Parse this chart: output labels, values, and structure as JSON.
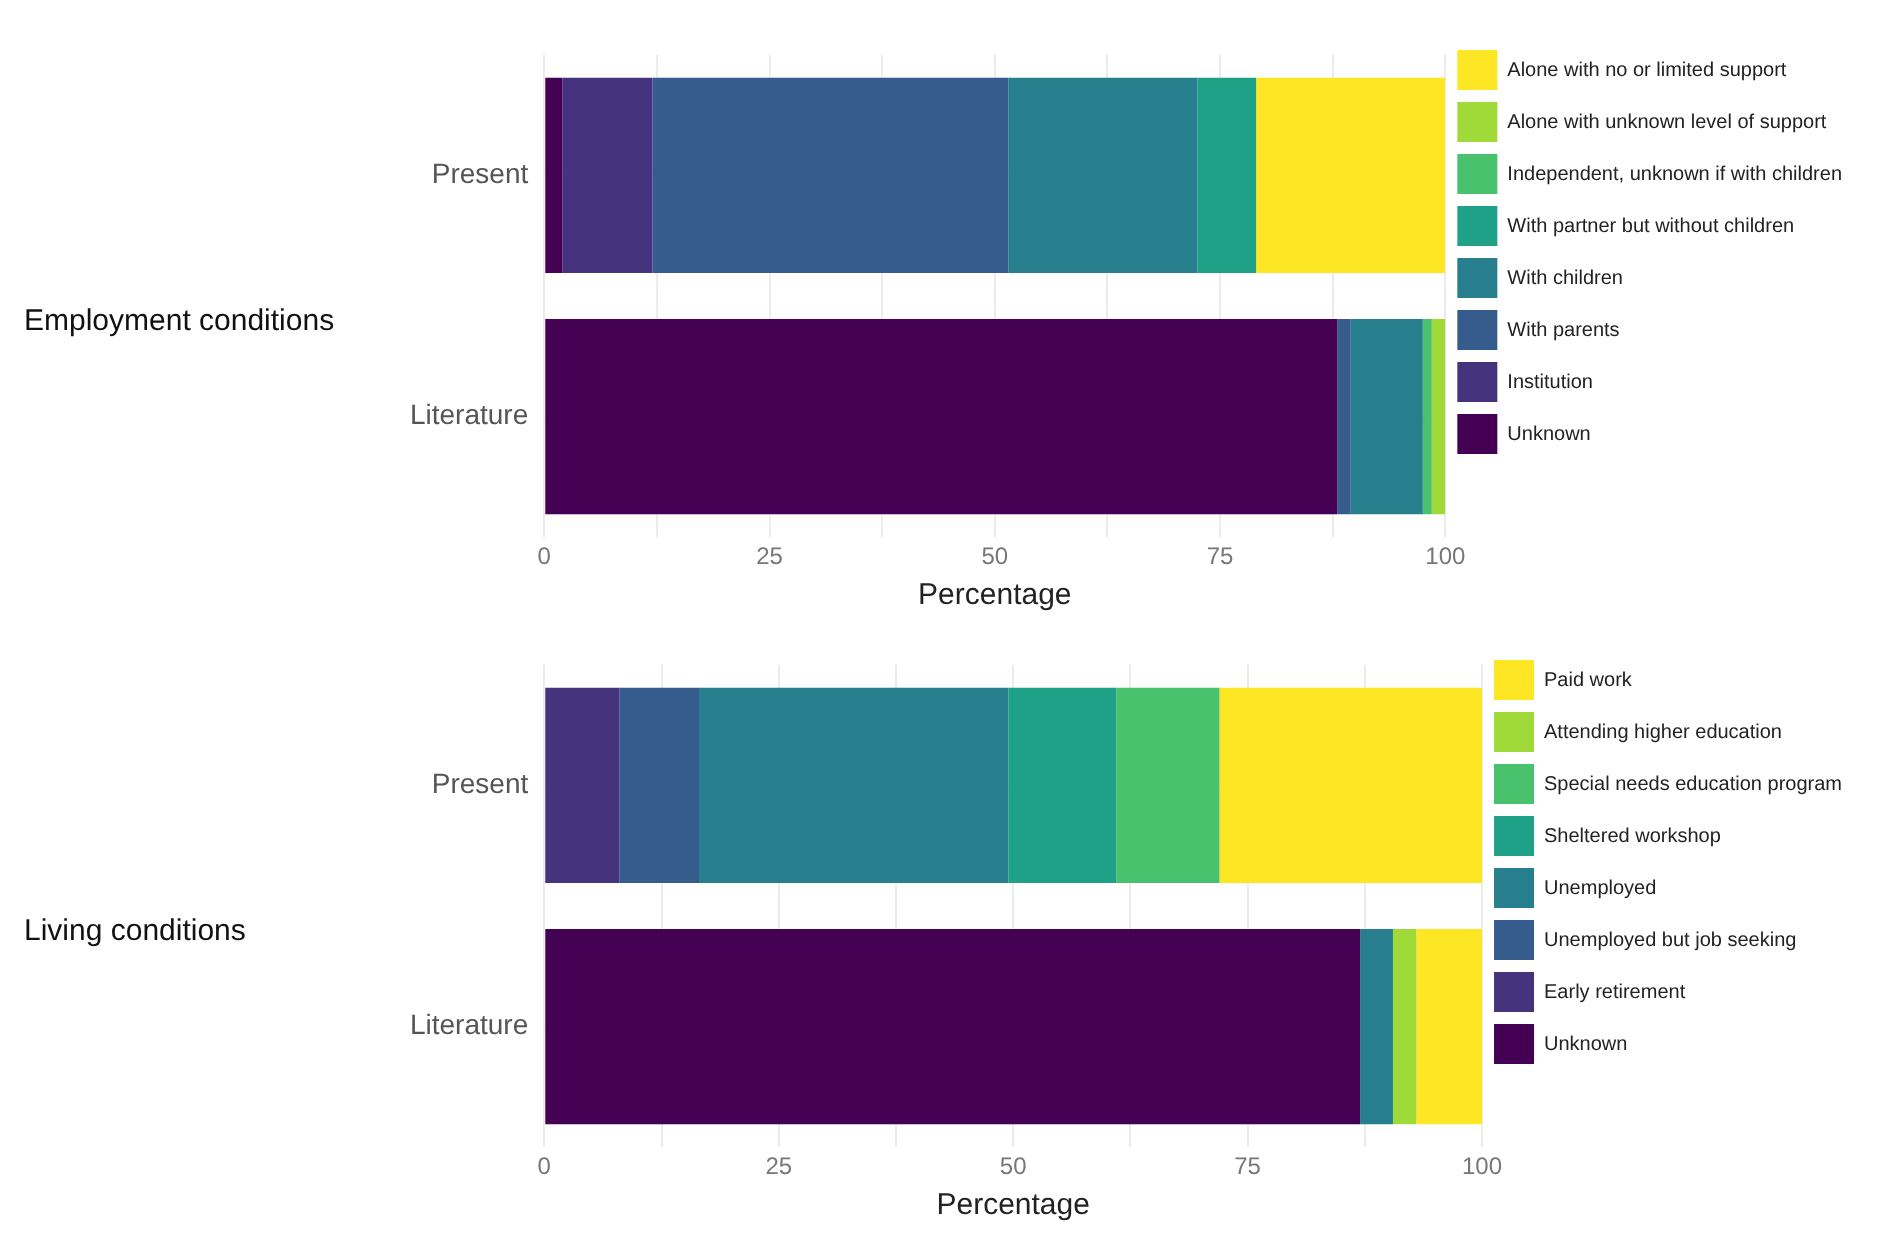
{
  "chart_data": [
    {
      "type": "bar",
      "orientation": "horizontal",
      "stacked": true,
      "title": "Employment conditions",
      "xlabel": "Percentage",
      "categories": [
        "Present",
        "Literature"
      ],
      "xlim": [
        0,
        100
      ],
      "xticks": [
        0,
        {
          "value": 12.5,
          "label": null
        },
        25,
        {
          "value": 37.5,
          "label": null
        },
        50,
        {
          "value": 62.5,
          "label": null
        },
        75,
        {
          "value": 87.5,
          "label": null
        },
        100
      ],
      "grid": true,
      "legend": "right",
      "series": [
        {
          "name": "Unknown",
          "color": "#440154",
          "values": [
            2,
            88
          ]
        },
        {
          "name": "Institution",
          "color": "#46337e",
          "values": [
            10,
            0
          ]
        },
        {
          "name": "With parents",
          "color": "#365c8d",
          "values": [
            39.5,
            1.5
          ]
        },
        {
          "name": "With children",
          "color": "#277f8e",
          "values": [
            21,
            8
          ]
        },
        {
          "name": "With partner but without children",
          "color": "#1fa187",
          "values": [
            6.5,
            0
          ]
        },
        {
          "name": "Independent, unknown if with children",
          "color": "#4ac16d",
          "values": [
            0,
            1
          ]
        },
        {
          "name": "Alone with unknown level of support",
          "color": "#a0da39",
          "values": [
            0,
            1.5
          ]
        },
        {
          "name": "Alone with no or limited support",
          "color": "#fde725",
          "values": [
            21,
            0
          ]
        }
      ]
    },
    {
      "type": "bar",
      "orientation": "horizontal",
      "stacked": true,
      "title": "Living conditions",
      "xlabel": "Percentage",
      "categories": [
        "Present",
        "Literature"
      ],
      "xlim": [
        0,
        100
      ],
      "xticks": [
        0,
        {
          "value": 12.5,
          "label": null
        },
        25,
        {
          "value": 37.5,
          "label": null
        },
        50,
        {
          "value": 62.5,
          "label": null
        },
        75,
        {
          "value": 87.5,
          "label": null
        },
        100
      ],
      "grid": true,
      "legend": "right",
      "series": [
        {
          "name": "Unknown",
          "color": "#440154",
          "values": [
            0,
            87
          ]
        },
        {
          "name": "Early retirement",
          "color": "#46337e",
          "values": [
            8,
            0
          ]
        },
        {
          "name": "Unemployed but job seeking",
          "color": "#365c8d",
          "values": [
            8.5,
            0
          ]
        },
        {
          "name": "Unemployed",
          "color": "#277f8e",
          "values": [
            33,
            3.5
          ]
        },
        {
          "name": "Sheltered workshop",
          "color": "#1fa187",
          "values": [
            11.5,
            0
          ]
        },
        {
          "name": "Special needs education program",
          "color": "#4ac16d",
          "values": [
            11,
            0
          ]
        },
        {
          "name": "Attending higher education",
          "color": "#a0da39",
          "values": [
            0,
            2.5
          ]
        },
        {
          "name": "Paid work",
          "color": "#fde725",
          "values": [
            28,
            7
          ]
        }
      ]
    }
  ]
}
